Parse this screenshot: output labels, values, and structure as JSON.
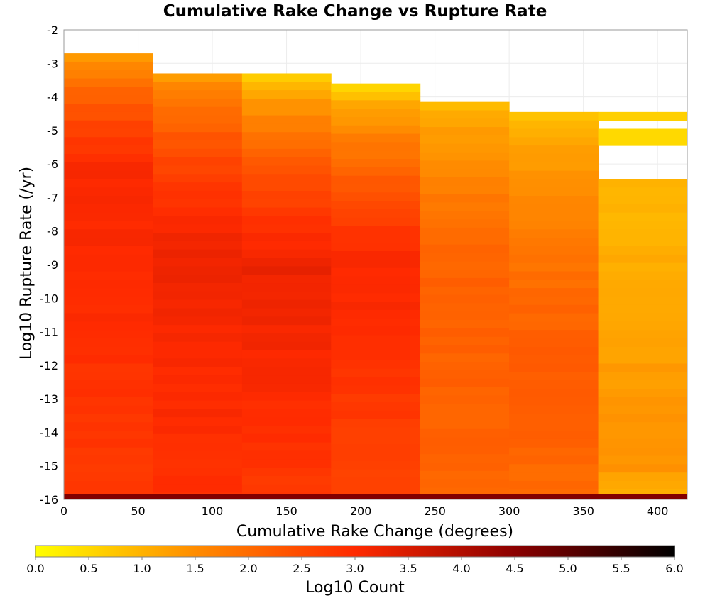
{
  "chart_data": {
    "type": "heatmap",
    "title": "Cumulative Rake Change vs Rupture Rate",
    "xlabel": "Cumulative Rake Change (degrees)",
    "ylabel": "Log10 Rupture Rate (/yr)",
    "xlim": [
      0,
      420
    ],
    "ylim": [
      -16,
      -2
    ],
    "x_ticks": [
      "0",
      "50",
      "100",
      "150",
      "200",
      "250",
      "300",
      "350",
      "400"
    ],
    "y_ticks": [
      "-2",
      "-3",
      "-4",
      "-5",
      "-6",
      "-7",
      "-8",
      "-9",
      "-10",
      "-11",
      "-12",
      "-13",
      "-14",
      "-15",
      "-16"
    ],
    "grid": true,
    "colorbar": {
      "label": "Log10 Count",
      "min": 0.0,
      "max": 6.0,
      "ticks": [
        "0.0",
        "0.5",
        "1.0",
        "1.5",
        "2.0",
        "2.5",
        "3.0",
        "3.5",
        "4.0",
        "4.5",
        "5.0",
        "5.5",
        "6.0"
      ],
      "colormap": [
        "#ffff00",
        "#ff8c00",
        "#ff2a00",
        "#8b0000",
        "#000000"
      ]
    },
    "x_bin_edges": [
      0,
      60,
      120,
      180,
      240,
      300,
      360,
      420
    ],
    "columns": [
      {
        "x_range": [
          0,
          60
        ],
        "y_top": -2.7,
        "top_value": 0.9,
        "min_value": 0.9,
        "peak_value": 3.1,
        "peak_y": -6.2,
        "bottom_value": 2.8
      },
      {
        "x_range": [
          60,
          120
        ],
        "y_top": -3.3,
        "top_value": 1.1,
        "min_value": 1.1,
        "peak_value": 3.2,
        "peak_y": -8.5,
        "bottom_value": 2.9
      },
      {
        "x_range": [
          120,
          180
        ],
        "y_top": -3.3,
        "top_value": 0.3,
        "min_value": 0.3,
        "peak_value": 3.25,
        "peak_y": -9.0,
        "bottom_value": 2.8
      },
      {
        "x_range": [
          180,
          240
        ],
        "y_top": -3.6,
        "top_value": 0.2,
        "min_value": 0.2,
        "peak_value": 3.1,
        "peak_y": -9.0,
        "bottom_value": 2.6
      },
      {
        "x_range": [
          240,
          300
        ],
        "y_top": -4.15,
        "top_value": 0.7,
        "min_value": 0.7,
        "peak_value": 2.2,
        "peak_y": -9.5,
        "bottom_value": 2.1
      },
      {
        "x_range": [
          300,
          360
        ],
        "y_top": -4.45,
        "top_value": 0.6,
        "min_value": 0.6,
        "peak_value": 2.3,
        "peak_y": -12.0,
        "bottom_value": 2.0
      },
      {
        "x_range": [
          360,
          420
        ],
        "y_top": -4.45,
        "top_value": 0.6,
        "min_value": 0.0,
        "peak_value": 1.4,
        "peak_y": -15.0,
        "bottom_value": 1.0,
        "gaps": [
          [
            -5.05,
            -4.75
          ],
          [
            -6.45,
            -5.35
          ]
        ],
        "islands": [
          {
            "y_range": [
              -5.35,
              -5.05
            ],
            "value": 0.5
          }
        ]
      }
    ],
    "bottom_row": {
      "y_range": [
        -16,
        -15.85
      ],
      "value": 4.6
    }
  }
}
